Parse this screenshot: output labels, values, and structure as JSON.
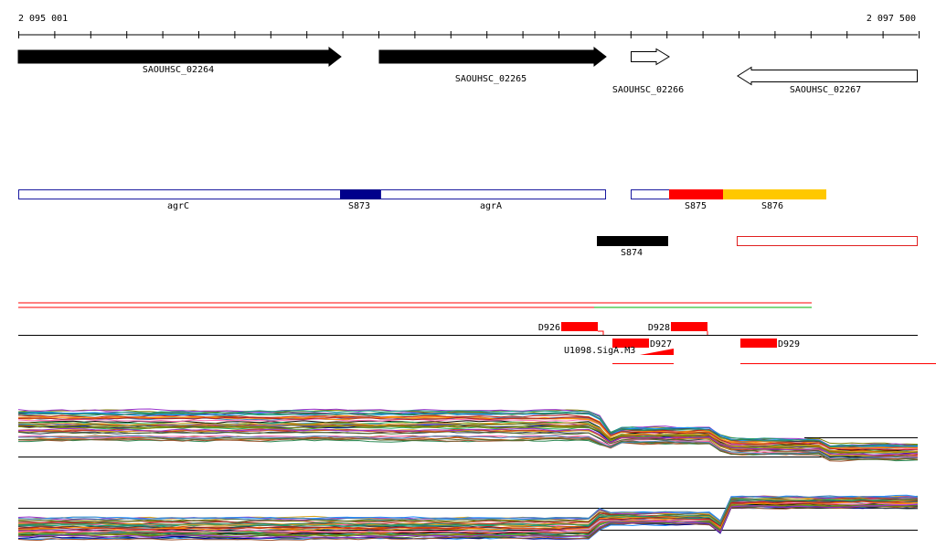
{
  "ruler": {
    "start_label": "2 095 001",
    "end_label": "2 097 500"
  },
  "genes": [
    {
      "name": "SAOUHSC_02264",
      "strand": "+",
      "fill": "#000000"
    },
    {
      "name": "SAOUHSC_02265",
      "strand": "+",
      "fill": "#000000"
    },
    {
      "name": "SAOUHSC_02266",
      "strand": "+",
      "fill": "#ffffff"
    },
    {
      "name": "SAOUHSC_02267",
      "strand": "-",
      "fill": "#ffffff"
    }
  ],
  "regions": [
    {
      "name": "agrC",
      "color": "#ffffff",
      "border": "#1a1aa0"
    },
    {
      "name": "S873",
      "color": "#00008b",
      "border": "#00008b"
    },
    {
      "name": "agrA",
      "color": "#ffffff",
      "border": "#1a1aa0"
    },
    {
      "name": "",
      "color": "#ffffff",
      "border": "#1a1aa0"
    },
    {
      "name": "S875",
      "color": "#ff0000",
      "border": "#ff0000"
    },
    {
      "name": "S876",
      "color": "#ffc800",
      "border": "#ffc800"
    },
    {
      "name": "S874",
      "color": "#000000",
      "border": "#000000"
    },
    {
      "name": "",
      "color": "#ffffff",
      "border": "#e02020"
    }
  ],
  "features": [
    {
      "name": "D926"
    },
    {
      "name": "D928"
    },
    {
      "name": "D927"
    },
    {
      "name": "D929"
    }
  ],
  "motif": {
    "name": "U1098.SigA.M3"
  },
  "colors": {
    "red": "#ff0000",
    "green": "#00b000",
    "navy": "#1a1aa0",
    "black": "#000000"
  },
  "expression_palette": [
    "#c0392b",
    "#27ae60",
    "#8e44ad",
    "#d35400",
    "#2c3e50",
    "#16a085",
    "#a0522d",
    "#6b8e23",
    "#ff69b4",
    "#1e90ff",
    "#808000",
    "#ff8c00",
    "#556b2f",
    "#b22222",
    "#4682b4",
    "#daa520",
    "#9932cc",
    "#2e8b57",
    "#cd853f",
    "#708090",
    "#000000",
    "#00008b"
  ]
}
